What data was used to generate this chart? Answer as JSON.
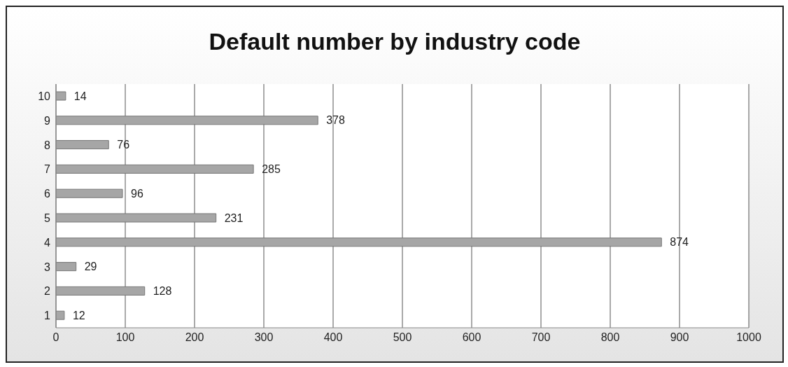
{
  "chart_data": {
    "type": "bar",
    "orientation": "horizontal",
    "title": "Default number by industry code",
    "categories": [
      "10",
      "9",
      "8",
      "7",
      "6",
      "5",
      "4",
      "3",
      "2",
      "1"
    ],
    "values": [
      14,
      378,
      76,
      285,
      96,
      231,
      874,
      29,
      128,
      12
    ],
    "color": "#a6a6a6",
    "xlim": [
      0,
      1000
    ],
    "xticks": [
      0,
      100,
      200,
      300,
      400,
      500,
      600,
      700,
      800,
      900,
      1000
    ],
    "grid": "x",
    "data_labels": true
  }
}
